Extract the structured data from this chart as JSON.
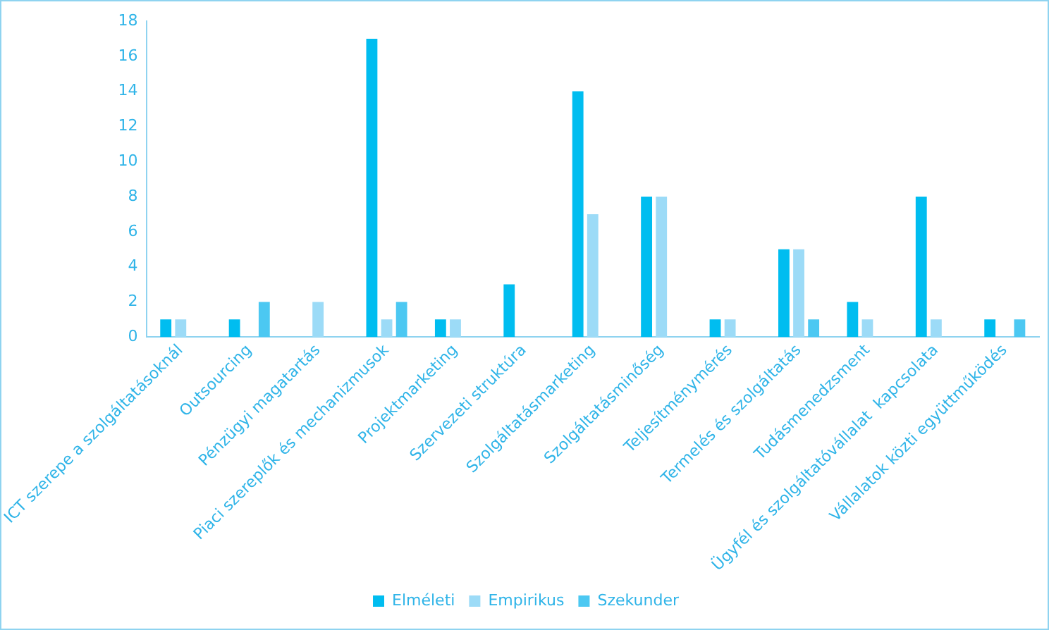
{
  "chart_data": {
    "type": "bar",
    "categories": [
      "ICT szerepe a szolgáltatásoknál",
      "Outsourcing",
      "Pénzügyi magatartás",
      "Piaci szereplők és mechanizmusok",
      "Projektmarketing",
      "Szervezeti struktúra",
      "Szolgáltatásmarketing",
      "Szolgáltatásminőség",
      "Teljesítménymérés",
      "Termelés és szolgáltatás",
      "Tudásmenedzsment",
      "Ügyfél és szolgáltatóvállalat  kapcsolata",
      "Vállalatok közti együttműködés"
    ],
    "series": [
      {
        "name": "Elméleti",
        "color": "#00bdf0",
        "values": [
          1,
          1,
          0,
          17,
          1,
          3,
          14,
          8,
          1,
          5,
          2,
          8,
          1
        ]
      },
      {
        "name": "Empirikus",
        "color": "#9cdbf7",
        "values": [
          1,
          0,
          2,
          1,
          1,
          0,
          7,
          8,
          1,
          5,
          1,
          1,
          0
        ]
      },
      {
        "name": "Szekunder",
        "color": "#4cc8f2",
        "values": [
          0,
          2,
          0,
          2,
          0,
          0,
          0,
          0,
          0,
          1,
          0,
          0,
          1
        ]
      }
    ],
    "ylim": [
      0,
      18
    ],
    "yticks": [
      0,
      2,
      4,
      6,
      8,
      10,
      12,
      14,
      16,
      18
    ],
    "grid": false,
    "legend": "bottom"
  }
}
